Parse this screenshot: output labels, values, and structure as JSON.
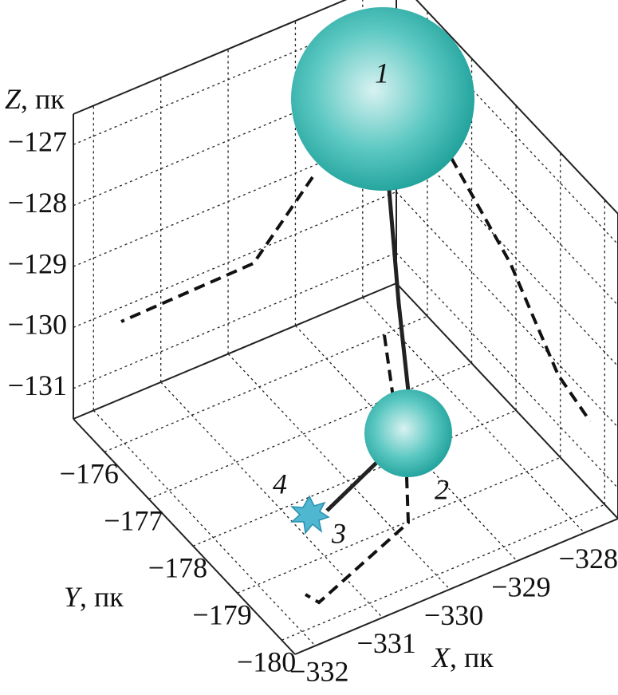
{
  "axes": {
    "x": {
      "var": "X",
      "unit": ", пк",
      "lim": [
        -332.3,
        -327.5
      ],
      "ticks": [
        {
          "value": -332,
          "label": "−332"
        },
        {
          "value": -331,
          "label": "−331"
        },
        {
          "value": -330,
          "label": "−330"
        },
        {
          "value": -329,
          "label": "−329"
        },
        {
          "value": -328,
          "label": "−328"
        }
      ]
    },
    "y": {
      "var": "Y",
      "unit": ", пк",
      "lim": [
        -175.3,
        -180.3
      ],
      "ticks": [
        {
          "value": -176,
          "label": "−176"
        },
        {
          "value": -177,
          "label": "−177"
        },
        {
          "value": -178,
          "label": "−178"
        },
        {
          "value": -179,
          "label": "−179"
        },
        {
          "value": -180,
          "label": "−180"
        }
      ]
    },
    "z": {
      "var": "Z",
      "unit": ", пк",
      "lim": [
        -131.5,
        -126.5
      ],
      "ticks": [
        {
          "value": -127,
          "label": "−127"
        },
        {
          "value": -128,
          "label": "−128"
        },
        {
          "value": -129,
          "label": "−129"
        },
        {
          "value": -130,
          "label": "−130"
        },
        {
          "value": -131,
          "label": "−131"
        }
      ]
    }
  },
  "points": [
    {
      "label": "1"
    },
    {
      "label": "2"
    },
    {
      "label": "3"
    },
    {
      "label": "4"
    }
  ]
}
